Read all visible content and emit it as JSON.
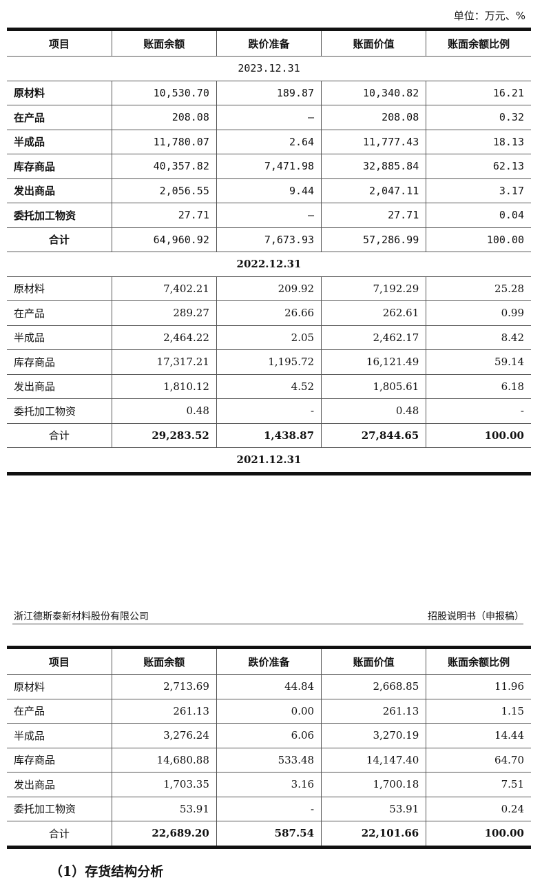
{
  "unit_label": "单位：万元、%",
  "columns": [
    "项目",
    "账面余额",
    "跌价准备",
    "账面价值",
    "账面余额比例"
  ],
  "periods": [
    {
      "date": "2023.12.31",
      "rows": [
        [
          "原材料",
          "10,530.70",
          "189.87",
          "10,340.82",
          "16.21"
        ],
        [
          "在产品",
          "208.08",
          "–",
          "208.08",
          "0.32"
        ],
        [
          "半成品",
          "11,780.07",
          "2.64",
          "11,777.43",
          "18.13"
        ],
        [
          "库存商品",
          "40,357.82",
          "7,471.98",
          "32,885.84",
          "62.13"
        ],
        [
          "发出商品",
          "2,056.55",
          "9.44",
          "2,047.11",
          "3.17"
        ],
        [
          "委托加工物资",
          "27.71",
          "–",
          "27.71",
          "0.04"
        ]
      ],
      "total": [
        "合计",
        "64,960.92",
        "7,673.93",
        "57,286.99",
        "100.00"
      ]
    },
    {
      "date": "2022.12.31",
      "rows": [
        [
          "原材料",
          "7,402.21",
          "209.92",
          "7,192.29",
          "25.28"
        ],
        [
          "在产品",
          "289.27",
          "26.66",
          "262.61",
          "0.99"
        ],
        [
          "半成品",
          "2,464.22",
          "2.05",
          "2,462.17",
          "8.42"
        ],
        [
          "库存商品",
          "17,317.21",
          "1,195.72",
          "16,121.49",
          "59.14"
        ],
        [
          "发出商品",
          "1,810.12",
          "4.52",
          "1,805.61",
          "6.18"
        ],
        [
          "委托加工物资",
          "0.48",
          "-",
          "0.48",
          "-"
        ]
      ],
      "total": [
        "合计",
        "29,283.52",
        "1,438.87",
        "27,844.65",
        "100.00"
      ]
    },
    {
      "date": "2021.12.31",
      "rows": [
        [
          "原材料",
          "2,713.69",
          "44.84",
          "2,668.85",
          "11.96"
        ],
        [
          "在产品",
          "261.13",
          "0.00",
          "261.13",
          "1.15"
        ],
        [
          "半成品",
          "3,276.24",
          "6.06",
          "3,270.19",
          "14.44"
        ],
        [
          "库存商品",
          "14,680.88",
          "533.48",
          "14,147.40",
          "64.70"
        ],
        [
          "发出商品",
          "1,703.35",
          "3.16",
          "1,700.18",
          "7.51"
        ],
        [
          "委托加工物资",
          "53.91",
          "-",
          "53.91",
          "0.24"
        ]
      ],
      "total": [
        "合计",
        "22,689.20",
        "587.54",
        "22,101.66",
        "100.00"
      ]
    }
  ],
  "page_header": {
    "company": "浙江德斯泰新材料股份有限公司",
    "doc": "招股说明书（申报稿）"
  },
  "section_title": "（1）存货结构分析"
}
